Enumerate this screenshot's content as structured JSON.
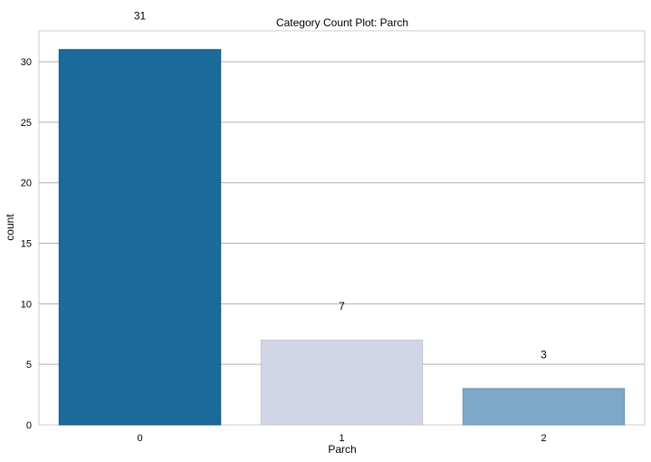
{
  "chart_data": {
    "type": "bar",
    "title": "Category Count Plot: Parch",
    "xlabel": "Parch",
    "ylabel": "count",
    "categories": [
      "0",
      "1",
      "2"
    ],
    "values": [
      31,
      7,
      3
    ],
    "data_labels": [
      "31",
      "7",
      "3"
    ],
    "ylim": [
      0,
      32.55
    ],
    "yticks": [
      0,
      5,
      10,
      15,
      20,
      25,
      30
    ],
    "grid": "horizontal",
    "legend": "none",
    "colors": [
      "#1a6b9c",
      "#d2d5e5",
      "#7da8c7"
    ],
    "edge_colors": [
      "#0f5a88",
      "#c3c6d6",
      "#6d97b6"
    ]
  }
}
